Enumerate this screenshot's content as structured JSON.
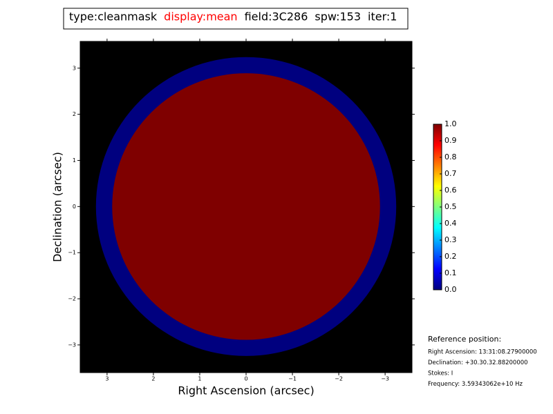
{
  "chart_data": {
    "type": "image",
    "title_parts": [
      {
        "text": "type:cleanmask",
        "color": "#000000"
      },
      {
        "text": "display:mean",
        "color": "#ff0000"
      },
      {
        "text": "field:3C286",
        "color": "#000000"
      },
      {
        "text": "spw:153",
        "color": "#000000"
      },
      {
        "text": "iter:1",
        "color": "#000000"
      }
    ],
    "x_label": "Right Ascension (arcsec)",
    "y_label": "Declination (arcsec)",
    "background": "#000000",
    "xlim": [
      3.58,
      -3.58
    ],
    "ylim": [
      -3.6,
      3.58
    ],
    "xticks": [
      3,
      2,
      1,
      0,
      {
        "value": -1,
        "label": "−1"
      },
      {
        "value": -2,
        "label": "−2"
      },
      {
        "value": -3,
        "label": "−3"
      }
    ],
    "yticks": [
      {
        "value": -3,
        "label": "−3"
      },
      {
        "value": -2,
        "label": "−2"
      },
      {
        "value": -1,
        "label": "−1"
      },
      0,
      1,
      2,
      3
    ],
    "regions": [
      {
        "radius": 3.24,
        "value": 0.0,
        "color": "#00007f"
      },
      {
        "radius": 2.89,
        "value": 1.0,
        "color": "#7f0000"
      }
    ],
    "colorbar": {
      "lim": [
        0,
        1
      ],
      "colormap": [
        "#00007f",
        "#0000ff",
        "#007fff",
        "#00ffff",
        "#7fff7f",
        "#ffff00",
        "#ff7f00",
        "#ff0000",
        "#7f0000"
      ],
      "ticks": [
        {
          "value": 0,
          "label": "0.0"
        },
        {
          "value": 0.1,
          "label": "0.1"
        },
        {
          "value": 0.2,
          "label": "0.2"
        },
        {
          "value": 0.3,
          "label": "0.3"
        },
        {
          "value": 0.4,
          "label": "0.4"
        },
        {
          "value": 0.5,
          "label": "0.5"
        },
        {
          "value": 0.6,
          "label": "0.6"
        },
        {
          "value": 0.7,
          "label": "0.7"
        },
        {
          "value": 0.8,
          "label": "0.8"
        },
        {
          "value": 0.9,
          "label": "0.9"
        },
        {
          "value": 1,
          "label": "1.0"
        }
      ]
    },
    "reference": {
      "heading": "Reference position:",
      "lines": [
        "Right Ascension: 13:31:08.27900000",
        "Declination: +30.30.32.88200000",
        "Stokes: I",
        "Frequency: 3.59343062e+10 Hz"
      ]
    }
  }
}
